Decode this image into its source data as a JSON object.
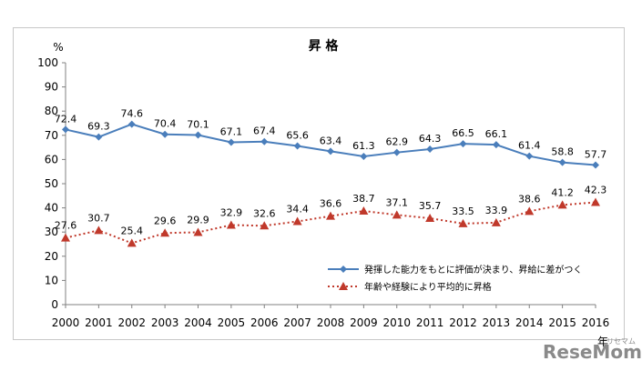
{
  "chart_data": {
    "type": "line",
    "title": "昇 格",
    "ylabel": "%",
    "xlabel": "年",
    "ylim": [
      0,
      100
    ],
    "yticks": [
      0,
      10,
      20,
      30,
      40,
      50,
      60,
      70,
      80,
      90,
      100
    ],
    "categories": [
      "2000",
      "2001",
      "2002",
      "2003",
      "2004",
      "2005",
      "2006",
      "2007",
      "2008",
      "2009",
      "2010",
      "2011",
      "2012",
      "2013",
      "2014",
      "2015",
      "2016"
    ],
    "series": [
      {
        "name": "発揮した能力をもとに評価が決まり、昇給に差がつく",
        "color": "#4a7ebb",
        "marker": "diamond",
        "line_style": "solid",
        "values": [
          72.4,
          69.3,
          74.6,
          70.4,
          70.1,
          67.1,
          67.4,
          65.6,
          63.4,
          61.3,
          62.9,
          64.3,
          66.5,
          66.1,
          61.4,
          58.8,
          57.7
        ],
        "labels": [
          "72.4",
          "69.3",
          "74.6",
          "70.4",
          "70.1",
          "67.1",
          "67.4",
          "65.6",
          "63.4",
          "61.3",
          "62.9",
          "64.3",
          "66.5",
          "66.1",
          "61.4",
          "58.8",
          "57.7"
        ]
      },
      {
        "name": "年齢や経験により平均的に昇格",
        "color": "#c0392b",
        "marker": "triangle",
        "line_style": "dotted",
        "values": [
          27.6,
          30.7,
          25.4,
          29.6,
          29.9,
          32.9,
          32.6,
          34.4,
          36.6,
          38.7,
          37.1,
          35.7,
          33.5,
          33.9,
          38.6,
          41.2,
          42.3
        ],
        "labels": [
          "27.6",
          "30.7",
          "25.4",
          "29.6",
          "29.9",
          "32.9",
          "32.6",
          "34.4",
          "36.6",
          "38.7",
          "37.1",
          "35.7",
          "33.5",
          "33.9",
          "38.6",
          "41.2",
          "42.3"
        ]
      }
    ],
    "legend_position": "bottom-right"
  },
  "watermark": {
    "main": "ReseMom",
    "sub": "リセマム"
  }
}
